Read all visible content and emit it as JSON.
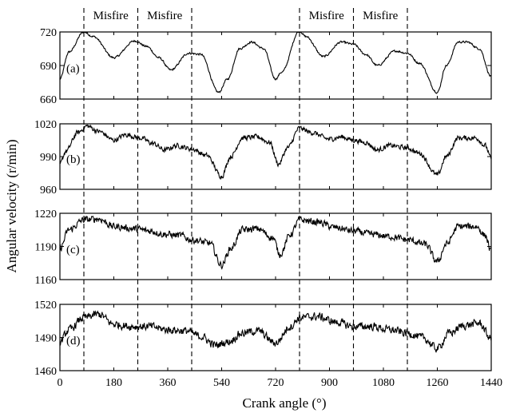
{
  "chart_data": {
    "type": "line",
    "xlabel": "Crank angle (°)",
    "ylabel": "Angular velocity (r/min)",
    "x_ticks": [
      0,
      180,
      360,
      540,
      720,
      900,
      1080,
      1260,
      1440
    ],
    "x_tick_labels": [
      "0",
      "180",
      "360",
      "540",
      "720",
      "900",
      "1080",
      "1260",
      "1440"
    ],
    "xlim": [
      0,
      1440
    ],
    "misfire_lines": [
      80,
      260,
      440,
      800,
      980,
      1160
    ],
    "misfire_labels": [
      {
        "text": "Misfire",
        "x_center": 170
      },
      {
        "text": "Misfire",
        "x_center": 350
      },
      {
        "text": "Misfire",
        "x_center": 890
      },
      {
        "text": "Misfire",
        "x_center": 1070
      }
    ],
    "panels": [
      {
        "label": "(a)",
        "ylim": [
          660,
          720
        ],
        "y_ticks": [
          660,
          690,
          720
        ],
        "y_tick_labels": [
          "660",
          "690",
          "720"
        ],
        "noise": 0.8,
        "profile": [
          [
            0,
            678
          ],
          [
            30,
            702
          ],
          [
            80,
            720
          ],
          [
            110,
            716
          ],
          [
            180,
            697
          ],
          [
            250,
            712
          ],
          [
            290,
            707
          ],
          [
            330,
            697
          ],
          [
            370,
            686
          ],
          [
            430,
            701
          ],
          [
            470,
            700
          ],
          [
            530,
            666
          ],
          [
            560,
            678
          ],
          [
            600,
            705
          ],
          [
            640,
            711
          ],
          [
            680,
            705
          ],
          [
            720,
            678
          ],
          [
            740,
            684
          ],
          [
            800,
            721
          ],
          [
            820,
            716
          ],
          [
            880,
            698
          ],
          [
            940,
            711
          ],
          [
            980,
            709
          ],
          [
            1020,
            700
          ],
          [
            1060,
            690
          ],
          [
            1120,
            703
          ],
          [
            1160,
            701
          ],
          [
            1200,
            692
          ],
          [
            1260,
            666
          ],
          [
            1290,
            690
          ],
          [
            1330,
            711
          ],
          [
            1360,
            711
          ],
          [
            1400,
            705
          ],
          [
            1440,
            680
          ]
        ]
      },
      {
        "label": "(b)",
        "ylim": [
          960,
          1020
        ],
        "y_ticks": [
          960,
          990,
          1020
        ],
        "y_tick_labels": [
          "960",
          "990",
          "1020"
        ],
        "noise": 2.0,
        "profile": [
          [
            0,
            983
          ],
          [
            20,
            995
          ],
          [
            60,
            1012
          ],
          [
            90,
            1018
          ],
          [
            130,
            1013
          ],
          [
            180,
            1005
          ],
          [
            220,
            1010
          ],
          [
            270,
            1007
          ],
          [
            310,
            1002
          ],
          [
            350,
            996
          ],
          [
            390,
            1000
          ],
          [
            440,
            997
          ],
          [
            490,
            991
          ],
          [
            540,
            972
          ],
          [
            570,
            990
          ],
          [
            610,
            1007
          ],
          [
            660,
            1008
          ],
          [
            700,
            1003
          ],
          [
            730,
            983
          ],
          [
            760,
            998
          ],
          [
            800,
            1016
          ],
          [
            840,
            1012
          ],
          [
            900,
            1006
          ],
          [
            940,
            1008
          ],
          [
            980,
            1005
          ],
          [
            1020,
            1003
          ],
          [
            1060,
            996
          ],
          [
            1100,
            1000
          ],
          [
            1160,
            998
          ],
          [
            1200,
            993
          ],
          [
            1260,
            973
          ],
          [
            1290,
            990
          ],
          [
            1330,
            1007
          ],
          [
            1390,
            1007
          ],
          [
            1420,
            1000
          ],
          [
            1440,
            988
          ]
        ]
      },
      {
        "label": "(c)",
        "ylim": [
          1160,
          1220
        ],
        "y_ticks": [
          1160,
          1190,
          1220
        ],
        "y_tick_labels": [
          "1160",
          "1190",
          "1220"
        ],
        "noise": 2.8,
        "profile": [
          [
            0,
            1188
          ],
          [
            30,
            1205
          ],
          [
            80,
            1214
          ],
          [
            130,
            1215
          ],
          [
            180,
            1208
          ],
          [
            250,
            1206
          ],
          [
            300,
            1204
          ],
          [
            350,
            1201
          ],
          [
            400,
            1200
          ],
          [
            440,
            1196
          ],
          [
            500,
            1193
          ],
          [
            540,
            1173
          ],
          [
            570,
            1188
          ],
          [
            610,
            1205
          ],
          [
            660,
            1206
          ],
          [
            710,
            1198
          ],
          [
            735,
            1183
          ],
          [
            770,
            1201
          ],
          [
            800,
            1214
          ],
          [
            860,
            1212
          ],
          [
            920,
            1207
          ],
          [
            980,
            1204
          ],
          [
            1040,
            1201
          ],
          [
            1100,
            1199
          ],
          [
            1160,
            1196
          ],
          [
            1220,
            1192
          ],
          [
            1260,
            1176
          ],
          [
            1290,
            1192
          ],
          [
            1330,
            1208
          ],
          [
            1390,
            1208
          ],
          [
            1420,
            1200
          ],
          [
            1440,
            1185
          ]
        ]
      },
      {
        "label": "(d)",
        "ylim": [
          1460,
          1520
        ],
        "y_ticks": [
          1460,
          1490,
          1520
        ],
        "y_tick_labels": [
          "1460",
          "1490",
          "1520"
        ],
        "noise": 3.2,
        "profile": [
          [
            0,
            1486
          ],
          [
            30,
            1497
          ],
          [
            80,
            1508
          ],
          [
            130,
            1511
          ],
          [
            180,
            1502
          ],
          [
            240,
            1500
          ],
          [
            300,
            1500
          ],
          [
            360,
            1497
          ],
          [
            420,
            1496
          ],
          [
            470,
            1491
          ],
          [
            520,
            1483
          ],
          [
            560,
            1486
          ],
          [
            610,
            1494
          ],
          [
            660,
            1496
          ],
          [
            720,
            1485
          ],
          [
            770,
            1500
          ],
          [
            800,
            1508
          ],
          [
            860,
            1509
          ],
          [
            920,
            1504
          ],
          [
            980,
            1500
          ],
          [
            1040,
            1500
          ],
          [
            1100,
            1497
          ],
          [
            1160,
            1494
          ],
          [
            1210,
            1490
          ],
          [
            1260,
            1480
          ],
          [
            1300,
            1494
          ],
          [
            1350,
            1501
          ],
          [
            1400,
            1503
          ],
          [
            1440,
            1489
          ]
        ]
      }
    ]
  }
}
